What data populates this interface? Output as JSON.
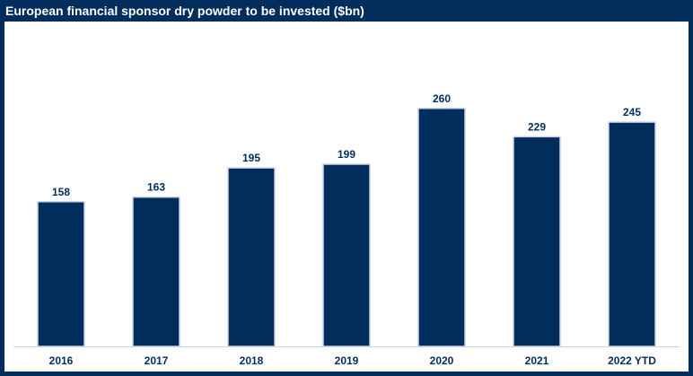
{
  "colors": {
    "frame": "#002d5c",
    "bar": "#002d5c",
    "bar_outline": "#c9d3e0",
    "text": "#002d5c",
    "title_text": "#ffffff",
    "background": "#ffffff"
  },
  "chart_data": {
    "type": "bar",
    "title": "European financial sponsor dry powder to be invested ($bn)",
    "categories": [
      "2016",
      "2017",
      "2018",
      "2019",
      "2020",
      "2021",
      "2022 YTD"
    ],
    "values": [
      158,
      163,
      195,
      199,
      260,
      229,
      245
    ],
    "data_labels": [
      "158",
      "163",
      "195",
      "199",
      "260",
      "229",
      "245"
    ],
    "xlabel": "",
    "ylabel": "",
    "ylim": [
      0,
      300
    ],
    "grid": false,
    "legend": "none"
  }
}
